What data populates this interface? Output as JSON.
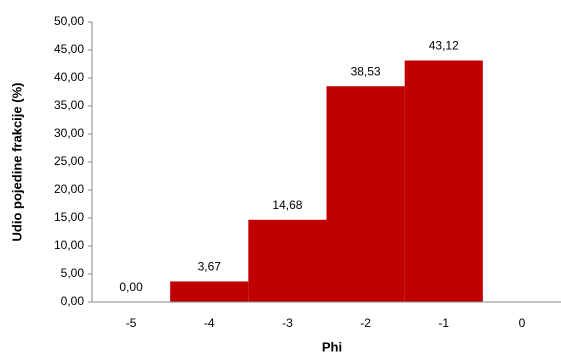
{
  "chart_data": {
    "type": "bar",
    "x_label": "Phi",
    "y_label": "Udio pojedine frakcije (%)",
    "categories": [
      "-5",
      "-4",
      "-3",
      "-2",
      "-1",
      "0"
    ],
    "values": [
      0.0,
      3.67,
      14.68,
      38.53,
      43.12,
      null
    ],
    "value_labels": [
      "0,00",
      "3,67",
      "14,68",
      "38,53",
      "43,12",
      null
    ],
    "color": "#c00000",
    "ylim": [
      0,
      50
    ],
    "yticks": [
      {
        "value": 0,
        "label": "0,00"
      },
      {
        "value": 5,
        "label": "5,00"
      },
      {
        "value": 10,
        "label": "10,00"
      },
      {
        "value": 15,
        "label": "15,00"
      },
      {
        "value": 20,
        "label": "20,00"
      },
      {
        "value": 25,
        "label": "25,00"
      },
      {
        "value": 30,
        "label": "30,00"
      },
      {
        "value": 35,
        "label": "35,00"
      },
      {
        "value": 40,
        "label": "40,00"
      },
      {
        "value": 45,
        "label": "45,00"
      },
      {
        "value": 50,
        "label": "50,00"
      }
    ]
  }
}
